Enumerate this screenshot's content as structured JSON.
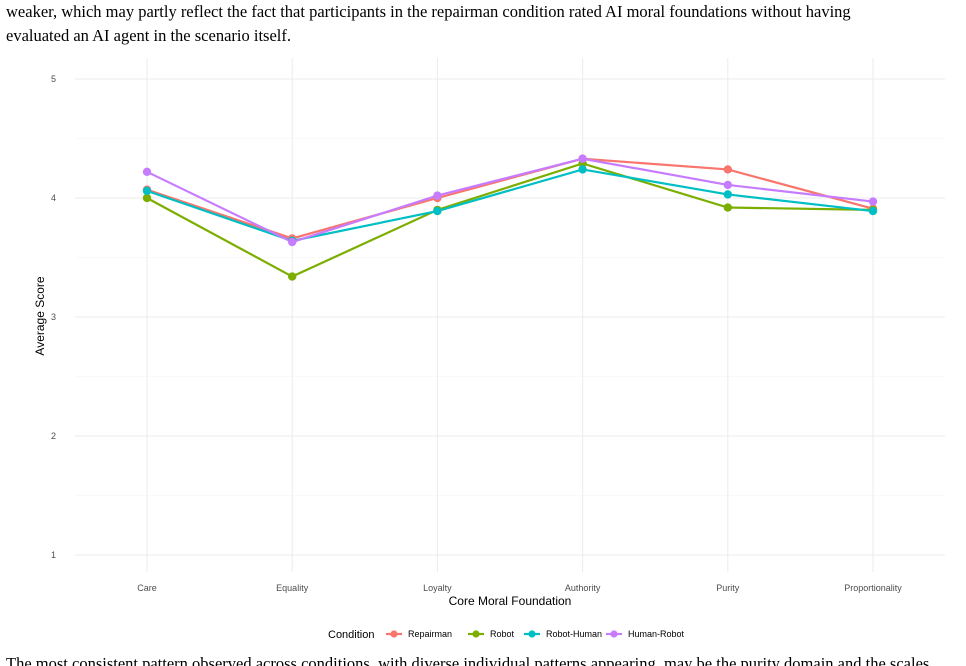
{
  "text": {
    "line1": "weaker, which may partly reflect the fact that participants in the repairman condition rated AI moral foundations without having",
    "line2": "evaluated an AI agent in the scenario itself.",
    "bottom_line": "The most consistent pattern observed across conditions, with diverse individual patterns appearing, may be the purity domain and the scales"
  },
  "chart_data": {
    "type": "line",
    "title": "",
    "xlabel": "Core Moral Foundation",
    "ylabel": "Average Score",
    "ylim": [
      1,
      5
    ],
    "yticks": [
      1,
      2,
      3,
      4,
      5
    ],
    "categories": [
      "Care",
      "Equality",
      "Loyalty",
      "Authority",
      "Purity",
      "Proportionality"
    ],
    "legend_title": "Condition",
    "legend_position": "bottom",
    "grid": true,
    "series": [
      {
        "name": "Repairman",
        "color": "#F8766D",
        "values": [
          4.07,
          3.66,
          4.0,
          4.33,
          4.24,
          3.91
        ]
      },
      {
        "name": "Robot",
        "color": "#7CAE00",
        "values": [
          4.0,
          3.34,
          3.9,
          4.29,
          3.92,
          3.9
        ]
      },
      {
        "name": "Robot-Human",
        "color": "#00BFC4",
        "values": [
          4.06,
          3.64,
          3.89,
          4.24,
          4.03,
          3.89
        ]
      },
      {
        "name": "Human-Robot",
        "color": "#C77CFF",
        "values": [
          4.22,
          3.63,
          4.02,
          4.33,
          4.11,
          3.97
        ]
      }
    ]
  }
}
